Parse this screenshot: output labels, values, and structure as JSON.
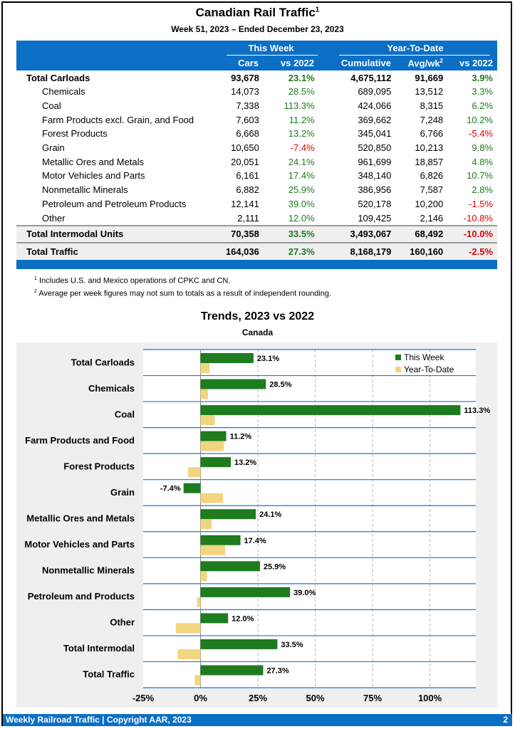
{
  "header": {
    "title": "Canadian Rail Traffic",
    "title_sup": "1",
    "week": "Week 51, 2023 – Ended December 23, 2023"
  },
  "table": {
    "group_this_week": "This Week",
    "group_ytd": "Year-To-Date",
    "col_cars": "Cars",
    "col_vs2022_week": "vs 2022",
    "col_cumulative": "Cumulative",
    "col_avgwk": "Avg/wk",
    "col_avgwk_sup": "2",
    "col_vs2022_ytd": "vs 2022",
    "rows": [
      {
        "label": "Total Carloads",
        "cars": "93,678",
        "vs_week": "23.1%",
        "cumulative": "4,675,112",
        "avgwk": "91,669",
        "vs_ytd": "3.9%",
        "total": true
      },
      {
        "label": "Chemicals",
        "cars": "14,073",
        "vs_week": "28.5%",
        "cumulative": "689,095",
        "avgwk": "13,512",
        "vs_ytd": "3.3%"
      },
      {
        "label": "Coal",
        "cars": "7,338",
        "vs_week": "113.3%",
        "cumulative": "424,066",
        "avgwk": "8,315",
        "vs_ytd": "6.2%"
      },
      {
        "label": "Farm Products excl. Grain, and Food",
        "cars": "7,603",
        "vs_week": "11.2%",
        "cumulative": "369,662",
        "avgwk": "7,248",
        "vs_ytd": "10.2%"
      },
      {
        "label": "Forest Products",
        "cars": "6,668",
        "vs_week": "13.2%",
        "cumulative": "345,041",
        "avgwk": "6,766",
        "vs_ytd": "-5.4%"
      },
      {
        "label": "Grain",
        "cars": "10,650",
        "vs_week": "-7.4%",
        "cumulative": "520,850",
        "avgwk": "10,213",
        "vs_ytd": "9.8%"
      },
      {
        "label": "Metallic Ores and Metals",
        "cars": "20,051",
        "vs_week": "24.1%",
        "cumulative": "961,699",
        "avgwk": "18,857",
        "vs_ytd": "4.8%"
      },
      {
        "label": "Motor Vehicles and Parts",
        "cars": "6,161",
        "vs_week": "17.4%",
        "cumulative": "348,140",
        "avgwk": "6,826",
        "vs_ytd": "10.7%"
      },
      {
        "label": "Nonmetallic Minerals",
        "cars": "6,882",
        "vs_week": "25.9%",
        "cumulative": "386,956",
        "avgwk": "7,587",
        "vs_ytd": "2.8%"
      },
      {
        "label": "Petroleum and Petroleum Products",
        "cars": "12,141",
        "vs_week": "39.0%",
        "cumulative": "520,178",
        "avgwk": "10,200",
        "vs_ytd": "-1.5%"
      },
      {
        "label": "Other",
        "cars": "2,111",
        "vs_week": "12.0%",
        "cumulative": "109,425",
        "avgwk": "2,146",
        "vs_ytd": "-10.8%"
      },
      {
        "label": "Total Intermodal Units",
        "cars": "70,358",
        "vs_week": "33.5%",
        "cumulative": "3,493,067",
        "avgwk": "68,492",
        "vs_ytd": "-10.0%",
        "total": true
      },
      {
        "label": "Total Traffic",
        "cars": "164,036",
        "vs_week": "27.3%",
        "cumulative": "8,168,179",
        "avgwk": "160,160",
        "vs_ytd": "-2.5%",
        "total": true
      }
    ]
  },
  "footnotes": [
    {
      "num": "1",
      "text": "Includes U.S. and Mexico operations of CPKC and CN."
    },
    {
      "num": "2",
      "text": "Average per week figures may not sum to totals as a result of independent rounding."
    }
  ],
  "chart_data": {
    "type": "bar",
    "orientation": "horizontal",
    "title": "Trends, 2023 vs 2022",
    "subtitle": "Canada",
    "categories": [
      "Total Carloads",
      "Chemicals",
      "Coal",
      "Farm Products and Food",
      "Forest Products",
      "Grain",
      "Metallic Ores and Metals",
      "Motor Vehicles and Parts",
      "Nonmetallic Minerals",
      "Petroleum and Products",
      "Other",
      "Total Intermodal",
      "Total Traffic"
    ],
    "series": [
      {
        "name": "This Week",
        "color": "#1E7B1E",
        "values": [
          23.1,
          28.5,
          113.3,
          11.2,
          13.2,
          -7.4,
          24.1,
          17.4,
          25.9,
          39.0,
          12.0,
          33.5,
          27.3
        ],
        "labels": [
          "23.1%",
          "28.5%",
          "113.3%",
          "11.2%",
          "13.2%",
          "-7.4%",
          "24.1%",
          "17.4%",
          "25.9%",
          "39.0%",
          "12.0%",
          "33.5%",
          "27.3%"
        ]
      },
      {
        "name": "Year-To-Date",
        "color": "#F2D580",
        "values": [
          3.9,
          3.3,
          6.2,
          10.2,
          -5.4,
          9.8,
          4.8,
          10.7,
          2.8,
          -1.5,
          -10.8,
          -10.0,
          -2.5
        ]
      }
    ],
    "xlim": [
      -25,
      120
    ],
    "xticks": [
      -25,
      0,
      25,
      50,
      75,
      100
    ],
    "xtick_labels": [
      "-25%",
      "0%",
      "25%",
      "50%",
      "75%",
      "100%"
    ],
    "legend_position": "top-right",
    "grid": "vertical dashed"
  },
  "footer": {
    "left": "Weekly Railroad Traffic | Copyright AAR, 2023",
    "page": "2"
  },
  "colors": {
    "blue": "#0B6FC5",
    "green": "#1f7a1f",
    "red": "#e00000",
    "bar_week": "#1E7B1E",
    "bar_ytd": "#F2D580"
  }
}
